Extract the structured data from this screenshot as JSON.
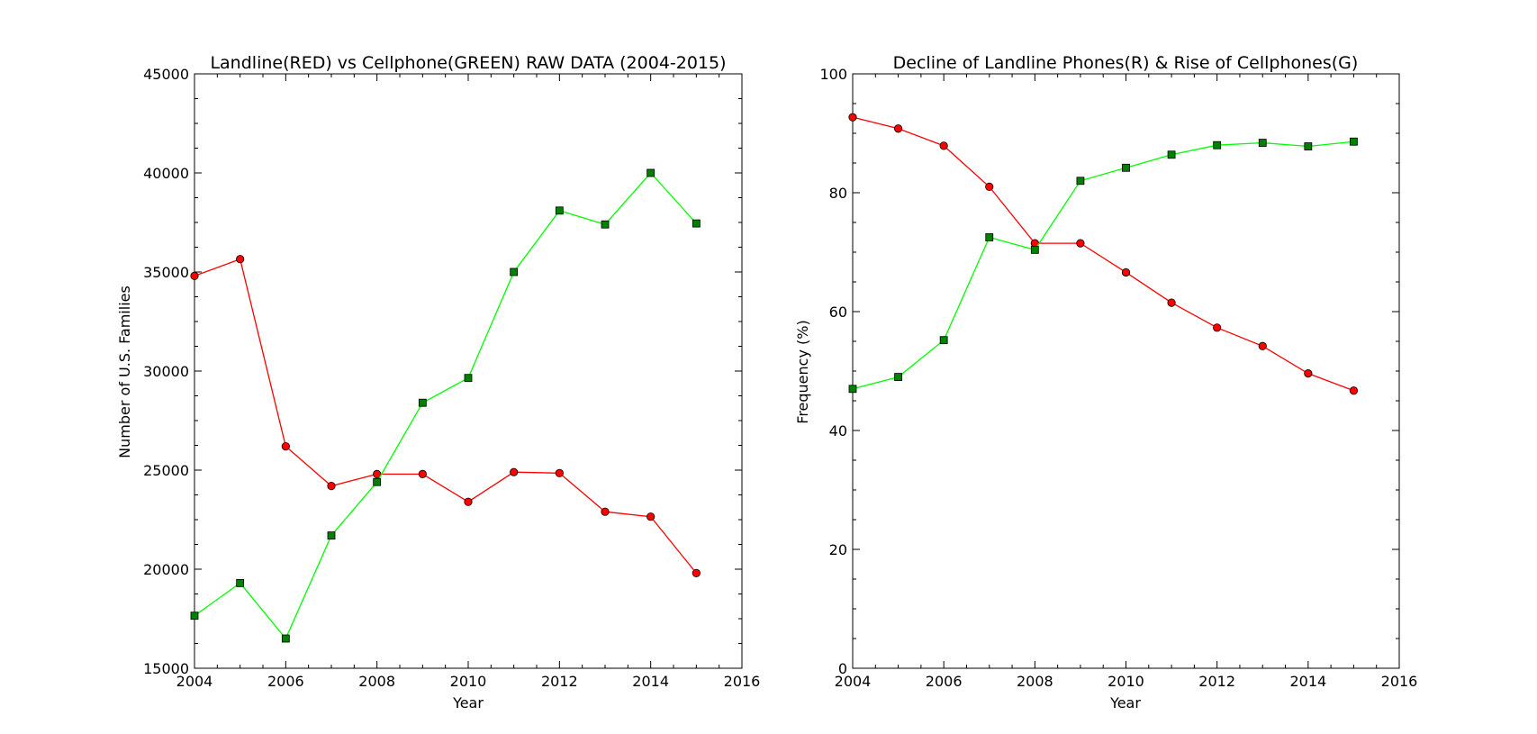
{
  "chart_data": [
    {
      "type": "line",
      "title": "Landline(RED) vs Cellphone(GREEN) RAW DATA (2004-2015)",
      "xlabel": "Year",
      "ylabel": "Number of U.S. Families",
      "xlim": [
        2004,
        2016
      ],
      "ylim": [
        15000,
        45000
      ],
      "xticks": [
        2004,
        2006,
        2008,
        2010,
        2012,
        2014,
        2016
      ],
      "yticks": [
        15000,
        20000,
        25000,
        30000,
        35000,
        40000,
        45000
      ],
      "grid": false,
      "x": [
        2004,
        2005,
        2006,
        2007,
        2008,
        2009,
        2010,
        2011,
        2012,
        2013,
        2014,
        2015
      ],
      "series": [
        {
          "color": "#ff0000",
          "marker": "circle",
          "marker_color": "#ff0000",
          "values": [
            34800,
            35650,
            26200,
            24200,
            24800,
            24800,
            23400,
            24900,
            24850,
            22900,
            22650,
            19800
          ]
        },
        {
          "color": "#00ff00",
          "marker": "square",
          "marker_color": "#008000",
          "values": [
            17650,
            19300,
            16500,
            21700,
            24400,
            28400,
            29650,
            35000,
            38100,
            37400,
            40000,
            37450
          ]
        }
      ]
    },
    {
      "type": "line",
      "title": "Decline of Landline Phones(R) & Rise of Cellphones(G)",
      "xlabel": "Year",
      "ylabel": "Frequency (%)",
      "xlim": [
        2004,
        2016
      ],
      "ylim": [
        0,
        100
      ],
      "xticks": [
        2004,
        2006,
        2008,
        2010,
        2012,
        2014,
        2016
      ],
      "yticks": [
        0,
        20,
        40,
        60,
        80,
        100
      ],
      "grid": false,
      "x": [
        2004,
        2005,
        2006,
        2007,
        2008,
        2009,
        2010,
        2011,
        2012,
        2013,
        2014,
        2015
      ],
      "series": [
        {
          "color": "#ff0000",
          "marker": "circle",
          "marker_color": "#ff0000",
          "values": [
            92.7,
            90.8,
            87.9,
            81.0,
            71.5,
            71.5,
            66.6,
            61.5,
            57.3,
            54.2,
            49.6,
            46.7
          ]
        },
        {
          "color": "#00ff00",
          "marker": "square",
          "marker_color": "#008000",
          "values": [
            47.0,
            49.0,
            55.2,
            72.5,
            70.4,
            82.0,
            84.2,
            86.4,
            88.0,
            88.4,
            87.8,
            88.6
          ]
        }
      ]
    }
  ]
}
